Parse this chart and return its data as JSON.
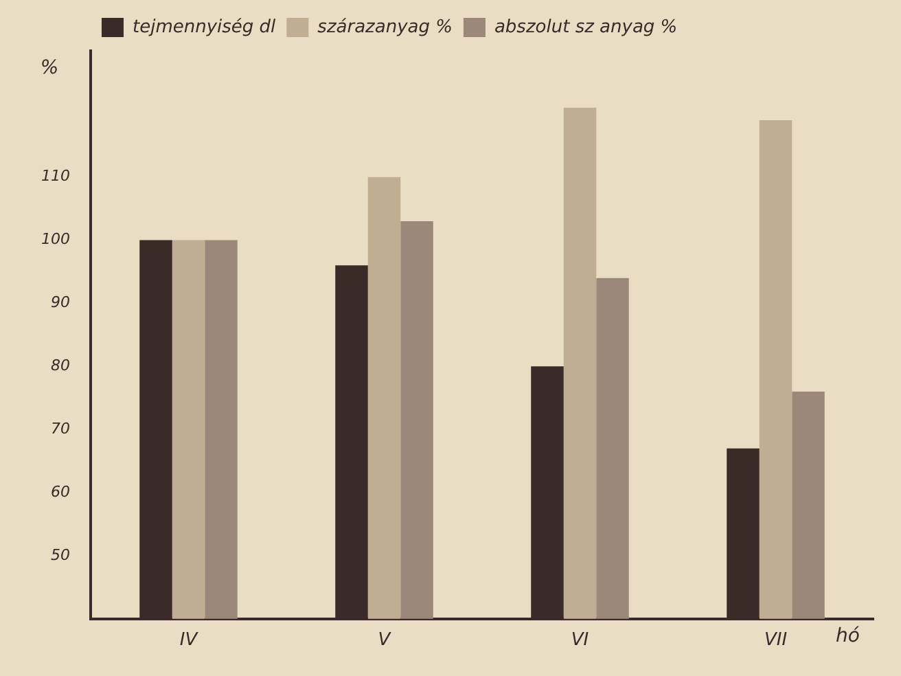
{
  "chart_data": {
    "type": "bar",
    "categories": [
      "IV",
      "V",
      "VI",
      "VII"
    ],
    "xlabel": "hó",
    "ylabel": "%",
    "series": [
      {
        "name": "tejmennyiség dl",
        "color": "#3a2a28",
        "values": [
          100,
          96,
          80,
          67
        ]
      },
      {
        "name": "szárazanyag %",
        "color": "#bfae92",
        "values": [
          100,
          110,
          121,
          119
        ]
      },
      {
        "name": "abszolut sz anyag %",
        "color": "#9a8878",
        "values": [
          100,
          103,
          94,
          76
        ]
      }
    ],
    "ylim": [
      40,
      130
    ],
    "yticks": [
      50,
      60,
      70,
      80,
      90,
      100,
      110
    ],
    "grid": false,
    "legend": "top left"
  }
}
